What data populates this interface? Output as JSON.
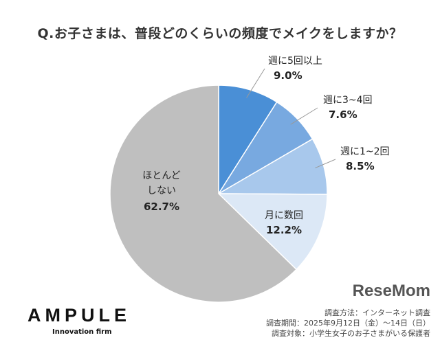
{
  "chart_data": {
    "type": "pie",
    "title": "Q.お子さまは、普段どのくらいの頻度でメイクをしますか？",
    "slices": [
      {
        "label": "週に5回以上",
        "value": 9.0,
        "display": "9.0%",
        "color": "#4a8fd6"
      },
      {
        "label": "週に3~4回",
        "value": 7.6,
        "display": "7.6%",
        "color": "#78a9e0"
      },
      {
        "label": "週に1~2回",
        "value": 8.5,
        "display": "8.5%",
        "color": "#a8c8ec"
      },
      {
        "label": "月に数回",
        "value": 12.2,
        "display": "12.2%",
        "color": "#dce8f6"
      },
      {
        "label": "ほとんどしない",
        "value": 62.7,
        "display": "62.7%",
        "color": "#bfbfbf"
      }
    ],
    "start": "top",
    "direction": "clockwise"
  },
  "brand": {
    "name": "AMPULE",
    "tagline": "Innovation firm"
  },
  "notes": [
    "調査方法：インターネット調査",
    "調査期間：2025年9月12日（金）～14日（日）",
    "調査対象：小学生女子のお子さまがいる保護者"
  ],
  "watermark": "ReseMom"
}
